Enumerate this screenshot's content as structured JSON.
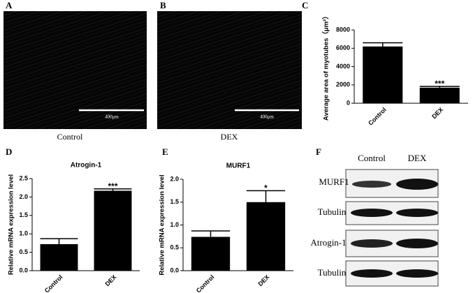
{
  "panels": {
    "a": {
      "label": "A",
      "caption": "Control",
      "scale_bar": "400μm"
    },
    "b": {
      "label": "B",
      "caption": "DEX",
      "scale_bar": "400μm"
    },
    "c": {
      "label": "C"
    },
    "d": {
      "label": "D"
    },
    "e": {
      "label": "E"
    }
  },
  "blot": {
    "label": "F",
    "columns": [
      "Control",
      "DEX"
    ],
    "rows": [
      "MURF1",
      "Tubulin",
      "Atrogin-1",
      "Tubulin"
    ]
  },
  "chart_data": [
    {
      "type": "bar",
      "ylabel": "Average area of myotubes（μm²）",
      "categories": [
        "Control",
        "DEX"
      ],
      "values": [
        6200,
        1700
      ],
      "errors": [
        400,
        150
      ],
      "annotations": [
        null,
        "***"
      ],
      "color": "#000000",
      "ylim": [
        0,
        8000
      ],
      "yticks": [
        0,
        2000,
        4000,
        6000,
        8000
      ]
    },
    {
      "type": "bar",
      "title": "Atrogin-1",
      "ylabel": "Relative mRNA expression level",
      "categories": [
        "Control",
        "DEX"
      ],
      "values": [
        0.72,
        2.17
      ],
      "errors": [
        0.15,
        0.05
      ],
      "annotations": [
        null,
        "***"
      ],
      "color": "#000000",
      "ylim": [
        0,
        2.5
      ],
      "yticks": [
        {
          "value": 0,
          "label": "0.0"
        },
        0.5,
        {
          "value": 1,
          "label": "1.0"
        },
        1.5,
        {
          "value": 2,
          "label": "2.0"
        },
        2.5
      ]
    },
    {
      "type": "bar",
      "title": "MURF1",
      "ylabel": "Relative mRNA expression level",
      "categories": [
        "Control",
        "DEX"
      ],
      "values": [
        0.74,
        1.5
      ],
      "errors": [
        0.13,
        0.25
      ],
      "annotations": [
        null,
        "*"
      ],
      "color": "#000000",
      "ylim": [
        0,
        2
      ],
      "yticks": [
        {
          "value": 0,
          "label": "0.0"
        },
        0.5,
        {
          "value": 1,
          "label": "1.0"
        },
        1.5,
        {
          "value": 2,
          "label": "2.0"
        }
      ]
    }
  ]
}
